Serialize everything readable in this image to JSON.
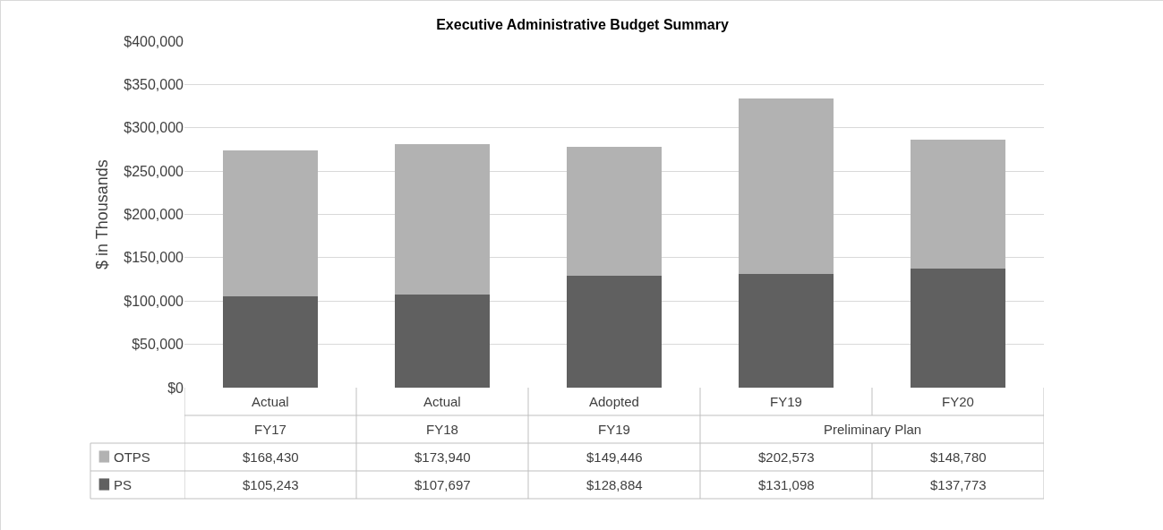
{
  "chart_data": {
    "type": "bar",
    "title": "Executive Administrative Budget Summary",
    "ylabel": "$ in Thousands",
    "categories": [
      "Actual\nFY17",
      "Actual\nFY18",
      "Adopted\nFY19",
      "FY19",
      "FY20"
    ],
    "stacked": true,
    "series": [
      {
        "name": "PS",
        "color": "#606060",
        "values": [
          105243,
          107697,
          128884,
          131098,
          137773
        ],
        "value_labels": [
          "$105,243",
          "$107,697",
          "$128,884",
          "$131,098",
          "$137,773"
        ]
      },
      {
        "name": "OTPS",
        "color": "#b2b2b2",
        "values": [
          168430,
          173940,
          149446,
          202573,
          148780
        ],
        "value_labels": [
          "$168,430",
          "$173,940",
          "$149,446",
          "$202,573",
          "$148,780"
        ]
      }
    ],
    "ylim": [
      0,
      400000
    ],
    "yticks": [
      {
        "value": 0,
        "label": "$0"
      },
      {
        "value": 50000,
        "label": "$50,000"
      },
      {
        "value": 100000,
        "label": "$100,000"
      },
      {
        "value": 150000,
        "label": "$150,000"
      },
      {
        "value": 200000,
        "label": "$200,000"
      },
      {
        "value": 250000,
        "label": "$250,000"
      },
      {
        "value": 300000,
        "label": "$300,000"
      },
      {
        "value": 350000,
        "label": "$350,000"
      },
      {
        "value": 400000,
        "label": "$400,000"
      }
    ],
    "grid": "y",
    "legend": "bottom left",
    "annotations": [
      "Preliminary Plan"
    ]
  }
}
